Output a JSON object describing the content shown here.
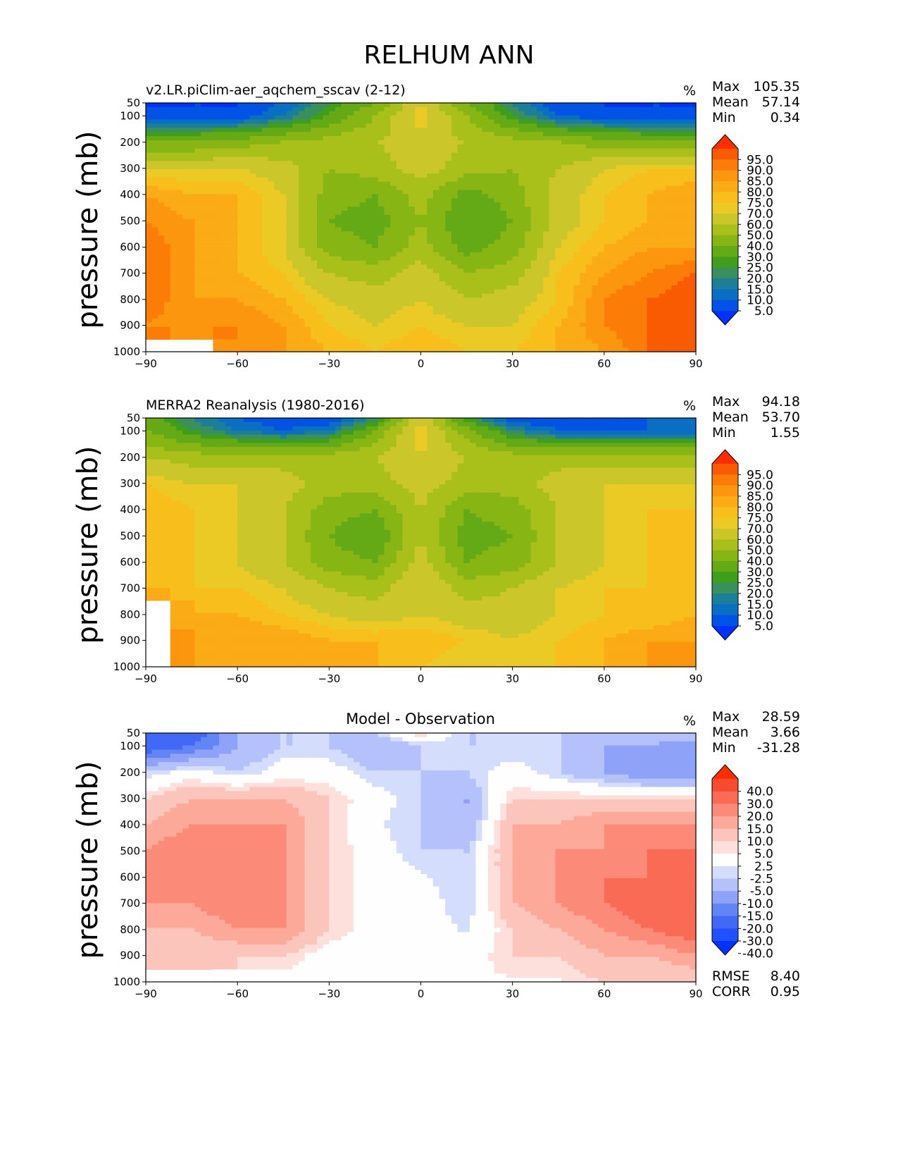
{
  "figure": {
    "title": "RELHUM ANN",
    "ylabel": "pressure (mb)",
    "units": "%"
  },
  "panels": [
    {
      "title": "v2.LR.piClim-aer_aqchem_sscav (2-12)",
      "units": "%",
      "stats": [
        {
          "label": "Max",
          "value": "105.35"
        },
        {
          "label": "Mean",
          "value": "57.14"
        },
        {
          "label": "Min",
          "value": "0.34"
        }
      ],
      "colorbar_key": "relhum"
    },
    {
      "title": "MERRA2 Reanalysis (1980-2016)",
      "units": "%",
      "stats": [
        {
          "label": "Max",
          "value": "94.18"
        },
        {
          "label": "Mean",
          "value": "53.70"
        },
        {
          "label": "Min",
          "value": "1.55"
        }
      ],
      "colorbar_key": "relhum"
    },
    {
      "title": "Model - Observation",
      "units": "%",
      "stats": [
        {
          "label": "Max",
          "value": "28.59"
        },
        {
          "label": "Mean",
          "value": "3.66"
        },
        {
          "label": "Min",
          "value": "-31.28"
        }
      ],
      "extra_stats": [
        {
          "label": "RMSE",
          "value": "8.40"
        },
        {
          "label": "CORR",
          "value": "0.95"
        }
      ],
      "colorbar_key": "diff"
    }
  ],
  "colorbars": {
    "relhum": {
      "labels": [
        "95.0",
        "90.0",
        "85.0",
        "80.0",
        "75.0",
        "70.0",
        "60.0",
        "50.0",
        "40.0",
        "30.0",
        "25.0",
        "20.0",
        "15.0",
        "10.0",
        "5.0"
      ],
      "colors": [
        "#0032ff",
        "#0053e4",
        "#0a6ec2",
        "#1b7f99",
        "#3a8f5e",
        "#3f9e1c",
        "#64aa16",
        "#87b614",
        "#a9c01b",
        "#cbc72a",
        "#ebca26",
        "#f8be1c",
        "#faab15",
        "#fb960e",
        "#fb7d08",
        "#f95b02",
        "#ff2e00"
      ]
    },
    "diff": {
      "labels": [
        "40.0",
        "30.0",
        "20.0",
        "15.0",
        "10.0",
        "5.0",
        "2.5",
        "-2.5",
        "-5.0",
        "-10.0",
        "-15.0",
        "-20.0",
        "-30.0",
        "-40.0"
      ],
      "colors": [
        "#0332ff",
        "#2150ff",
        "#4169f5",
        "#6285f5",
        "#8ea2f7",
        "#b4c1fa",
        "#d5ddfc",
        "#fefefe",
        "#fde0dc",
        "#fcc5bc",
        "#fca99a",
        "#fb8b78",
        "#f96b55",
        "#f74a2f",
        "#ff2e00"
      ]
    }
  },
  "chart_data": [
    {
      "type": "heatmap",
      "title": "v2.LR.piClim-aer_aqchem_sscav (2-12)",
      "ylabel": "pressure (mb)",
      "xlim": [
        -90,
        90
      ],
      "ylim": [
        1000,
        50
      ],
      "xticks": [
        "−90",
        "−60",
        "−30",
        "0",
        "30",
        "60",
        "90"
      ],
      "yticks": [
        "50",
        "100",
        "200",
        "300",
        "400",
        "500",
        "600",
        "700",
        "800",
        "900",
        "1000"
      ],
      "x": [
        -90,
        -75,
        -60,
        -45,
        -30,
        -15,
        0,
        15,
        30,
        45,
        60,
        75,
        90
      ],
      "y": [
        50,
        100,
        200,
        300,
        400,
        500,
        600,
        700,
        800,
        900,
        1000
      ],
      "values": [
        [
          5,
          5,
          5,
          10,
          25,
          40,
          70,
          40,
          20,
          5,
          5,
          5,
          5
        ],
        [
          5,
          5,
          5,
          15,
          30,
          50,
          75,
          50,
          25,
          10,
          5,
          5,
          5
        ],
        [
          40,
          40,
          45,
          50,
          55,
          60,
          65,
          60,
          55,
          50,
          45,
          40,
          40
        ],
        [
          70,
          70,
          70,
          65,
          50,
          55,
          65,
          55,
          50,
          60,
          70,
          75,
          75
        ],
        [
          85,
          80,
          80,
          70,
          45,
          40,
          55,
          35,
          45,
          65,
          75,
          80,
          85
        ],
        [
          90,
          85,
          80,
          70,
          40,
          35,
          50,
          30,
          40,
          65,
          75,
          80,
          85
        ],
        [
          95,
          85,
          80,
          70,
          45,
          40,
          55,
          35,
          45,
          70,
          80,
          85,
          85
        ],
        [
          95,
          85,
          80,
          75,
          60,
          55,
          65,
          50,
          55,
          75,
          85,
          90,
          95
        ],
        [
          95,
          85,
          85,
          80,
          70,
          65,
          70,
          60,
          65,
          75,
          90,
          95,
          100
        ],
        [
          90,
          85,
          90,
          85,
          75,
          70,
          75,
          70,
          70,
          80,
          90,
          95,
          105
        ],
        [
          null,
          null,
          85,
          85,
          80,
          75,
          80,
          75,
          75,
          80,
          85,
          95,
          100
        ]
      ]
    },
    {
      "type": "heatmap",
      "title": "MERRA2 Reanalysis (1980-2016)",
      "ylabel": "pressure (mb)",
      "xlim": [
        -90,
        90
      ],
      "ylim": [
        1000,
        50
      ],
      "xticks": [
        "−90",
        "−60",
        "−30",
        "0",
        "30",
        "60",
        "90"
      ],
      "yticks": [
        "50",
        "100",
        "200",
        "300",
        "400",
        "500",
        "600",
        "700",
        "800",
        "900",
        "1000"
      ],
      "x": [
        -90,
        -75,
        -60,
        -45,
        -30,
        -15,
        0,
        15,
        30,
        45,
        60,
        75,
        90
      ],
      "y": [
        50,
        100,
        200,
        300,
        400,
        500,
        600,
        700,
        800,
        900,
        1000
      ],
      "values": [
        [
          35,
          20,
          10,
          5,
          5,
          20,
          70,
          25,
          5,
          5,
          5,
          10,
          10
        ],
        [
          40,
          25,
          15,
          10,
          15,
          40,
          75,
          45,
          20,
          10,
          10,
          10,
          10
        ],
        [
          60,
          55,
          55,
          55,
          55,
          60,
          70,
          60,
          55,
          55,
          55,
          55,
          55
        ],
        [
          75,
          70,
          70,
          65,
          55,
          55,
          65,
          55,
          55,
          65,
          70,
          70,
          70
        ],
        [
          80,
          75,
          70,
          60,
          45,
          40,
          60,
          40,
          45,
          60,
          70,
          75,
          75
        ],
        [
          80,
          75,
          70,
          60,
          40,
          30,
          60,
          35,
          40,
          60,
          70,
          75,
          75
        ],
        [
          80,
          75,
          70,
          60,
          45,
          40,
          65,
          40,
          45,
          60,
          70,
          75,
          75
        ],
        [
          80,
          75,
          75,
          70,
          60,
          55,
          70,
          55,
          60,
          70,
          75,
          75,
          80
        ],
        [
          null,
          80,
          80,
          75,
          70,
          65,
          70,
          65,
          65,
          70,
          75,
          75,
          80
        ],
        [
          null,
          85,
          85,
          85,
          80,
          80,
          80,
          75,
          70,
          75,
          80,
          85,
          85
        ],
        [
          null,
          85,
          80,
          80,
          80,
          80,
          75,
          70,
          70,
          75,
          80,
          85,
          90
        ]
      ]
    },
    {
      "type": "heatmap",
      "title": "Model - Observation",
      "ylabel": "pressure (mb)",
      "xlim": [
        -90,
        90
      ],
      "ylim": [
        1000,
        50
      ],
      "xticks": [
        "−90",
        "−60",
        "−30",
        "0",
        "30",
        "60",
        "90"
      ],
      "yticks": [
        "50",
        "100",
        "200",
        "300",
        "400",
        "500",
        "600",
        "700",
        "800",
        "900",
        "1000"
      ],
      "x": [
        -90,
        -75,
        -60,
        -45,
        -30,
        -15,
        0,
        15,
        30,
        45,
        60,
        75,
        90
      ],
      "y": [
        50,
        100,
        200,
        300,
        400,
        500,
        600,
        700,
        800,
        900,
        1000
      ],
      "values": [
        [
          -30,
          -25,
          -10,
          -5,
          -5,
          -5,
          5,
          -5,
          -5,
          -5,
          -5,
          -5,
          -5
        ],
        [
          -25,
          -20,
          -10,
          -5,
          -5,
          -10,
          -5,
          -5,
          -5,
          -5,
          -10,
          -10,
          -15
        ],
        [
          -5,
          0,
          -5,
          0,
          0,
          -5,
          -5,
          -5,
          0,
          -5,
          -10,
          -15,
          -15
        ],
        [
          5,
          10,
          10,
          10,
          5,
          0,
          -5,
          -10,
          5,
          5,
          5,
          5,
          5
        ],
        [
          10,
          15,
          15,
          15,
          5,
          -2,
          -5,
          -10,
          10,
          10,
          15,
          15,
          15
        ],
        [
          15,
          20,
          15,
          15,
          5,
          0,
          -5,
          -5,
          10,
          15,
          15,
          20,
          20
        ],
        [
          15,
          15,
          20,
          15,
          5,
          0,
          -2,
          -5,
          10,
          15,
          20,
          20,
          20
        ],
        [
          15,
          15,
          20,
          15,
          5,
          0,
          0,
          -5,
          10,
          15,
          20,
          25,
          25
        ],
        [
          10,
          10,
          15,
          15,
          5,
          0,
          0,
          -3,
          5,
          10,
          15,
          20,
          25
        ],
        [
          5,
          5,
          5,
          5,
          0,
          0,
          0,
          0,
          5,
          5,
          10,
          10,
          15
        ],
        [
          null,
          null,
          0,
          0,
          2,
          2,
          2,
          2,
          2,
          2,
          5,
          5,
          5
        ]
      ]
    }
  ]
}
